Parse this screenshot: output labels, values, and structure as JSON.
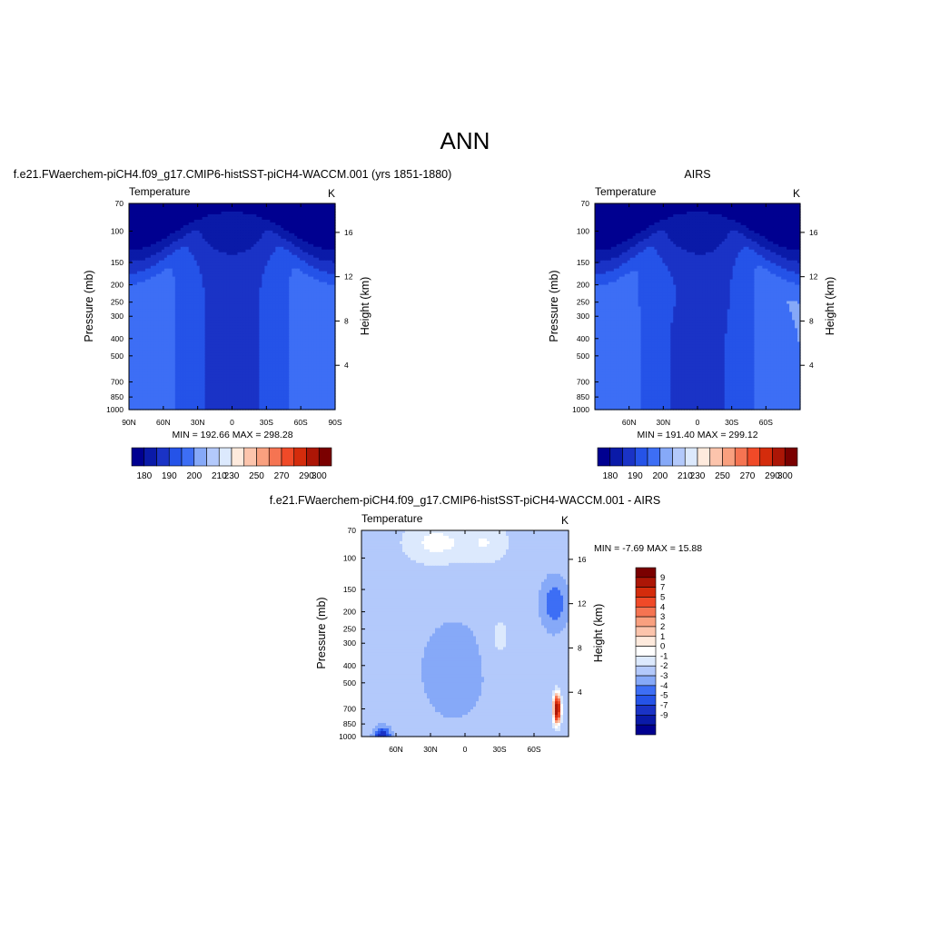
{
  "page": {
    "main_title": "ANN"
  },
  "colors": {
    "top_palette": [
      "#000090",
      "#0a1aa8",
      "#1a33c6",
      "#2553e8",
      "#3d6ef5",
      "#86a9f8",
      "#b3c9fb",
      "#dce9fd",
      "#feeadd",
      "#fcc4ac",
      "#f9a07f",
      "#f57452",
      "#f04a28",
      "#d42c0c",
      "#ac1606",
      "#7a0000"
    ],
    "diff_palette": [
      "#000090",
      "#0a1aa8",
      "#1a33c6",
      "#2553e8",
      "#3d6ef5",
      "#86a9f8",
      "#b3c9fb",
      "#dce9fd",
      "#ffffff",
      "#feeadd",
      "#fcc4ac",
      "#f9a07f",
      "#f57452",
      "#f04a28",
      "#d42c0c",
      "#ac1606",
      "#7a0000"
    ]
  },
  "chart_data": [
    {
      "id": "model",
      "type": "contour",
      "title": "f.e21.FWaerchem-piCH4.f09_g17.CMIP6-histSST-piCH4-WACCM.001 (yrs 1851-1880)",
      "left_string": "Temperature",
      "right_string": "K",
      "ylabel": "Pressure (mb)",
      "ylabel_right": "Height (km)",
      "y_ticks": [
        "70",
        "100",
        "150",
        "200",
        "250",
        "300",
        "400",
        "500",
        "700",
        "850",
        "1000"
      ],
      "y_tick_values": [
        70,
        100,
        150,
        200,
        250,
        300,
        400,
        500,
        700,
        850,
        1000
      ],
      "y_right_ticks": [
        "16",
        "12",
        "8",
        "4"
      ],
      "y_right_tick_values": [
        16,
        12,
        8,
        4
      ],
      "x_ticks": [
        "90N",
        "60N",
        "30N",
        "0",
        "30S",
        "60S",
        "90S"
      ],
      "x_tick_values": [
        90,
        60,
        30,
        0,
        -30,
        -60,
        -90
      ],
      "xlim": [
        90,
        -90
      ],
      "ylim": [
        1000,
        70
      ],
      "stats": "MIN = 192.66  MAX = 298.28",
      "min": 192.66,
      "max": 298.28
    },
    {
      "id": "obs",
      "type": "contour",
      "title": "AIRS",
      "left_string": "Temperature",
      "right_string": "K",
      "ylabel": "Pressure (mb)",
      "ylabel_right": "Height (km)",
      "y_ticks": [
        "70",
        "100",
        "150",
        "200",
        "250",
        "300",
        "400",
        "500",
        "700",
        "850",
        "1000"
      ],
      "y_tick_values": [
        70,
        100,
        150,
        200,
        250,
        300,
        400,
        500,
        700,
        850,
        1000
      ],
      "y_right_ticks": [
        "16",
        "12",
        "8",
        "4"
      ],
      "y_right_tick_values": [
        16,
        12,
        8,
        4
      ],
      "x_ticks": [
        "60N",
        "30N",
        "0",
        "30S",
        "60S"
      ],
      "x_tick_values": [
        60,
        30,
        0,
        -30,
        -60
      ],
      "xlim": [
        90,
        -90
      ],
      "ylim": [
        1000,
        70
      ],
      "stats": "MIN = 191.40  MAX = 299.12",
      "min": 191.4,
      "max": 299.12
    },
    {
      "id": "diff",
      "type": "contour",
      "title": "f.e21.FWaerchem-piCH4.f09_g17.CMIP6-histSST-piCH4-WACCM.001 - AIRS",
      "left_string": "Temperature",
      "right_string": "K",
      "ylabel": "Pressure (mb)",
      "ylabel_right": "Height (km)",
      "y_ticks": [
        "70",
        "100",
        "150",
        "200",
        "250",
        "300",
        "400",
        "500",
        "700",
        "850",
        "1000"
      ],
      "y_tick_values": [
        70,
        100,
        150,
        200,
        250,
        300,
        400,
        500,
        700,
        850,
        1000
      ],
      "y_right_ticks": [
        "16",
        "12",
        "8",
        "4"
      ],
      "y_right_tick_values": [
        16,
        12,
        8,
        4
      ],
      "x_ticks": [
        "60N",
        "30N",
        "0",
        "30S",
        "60S"
      ],
      "x_tick_values": [
        60,
        30,
        0,
        -30,
        -60
      ],
      "xlim": [
        90,
        -90
      ],
      "ylim": [
        1000,
        70
      ],
      "stats": "MIN =  -7.69  MAX =  15.88",
      "min": -7.69,
      "max": 15.88
    }
  ],
  "colorbars": {
    "top_labels": [
      "180",
      "190",
      "200",
      "210",
      "230",
      "250",
      "270",
      "290",
      "300"
    ],
    "diff_labels": [
      "9",
      "7",
      "5",
      "4",
      "3",
      "2",
      "1",
      "0",
      "-1",
      "-2",
      "-3",
      "-4",
      "-5",
      "-7",
      "-9"
    ]
  }
}
